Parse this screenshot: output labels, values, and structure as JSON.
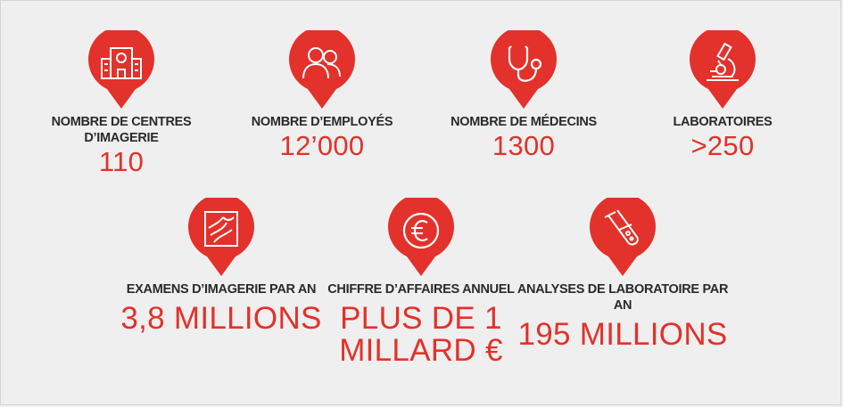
{
  "stats_row1": [
    {
      "icon": "building-icon",
      "label": "NOMBRE DE CENTRES D’IMAGERIE",
      "value": "110"
    },
    {
      "icon": "people-icon",
      "label": "NOMBRE D’EMPLOYÉS",
      "value": "12’000"
    },
    {
      "icon": "stethoscope-icon",
      "label": "NOMBRE DE MÉDECINS",
      "value": "1300"
    },
    {
      "icon": "microscope-icon",
      "label": "LABORATOIRES",
      "value": ">250"
    }
  ],
  "stats_row2": [
    {
      "icon": "xray-icon",
      "label": "EXAMENS D’IMAGERIE PAR AN",
      "value": "3,8 MILLIONS"
    },
    {
      "icon": "euro-icon",
      "label": "CHIFFRE D’AFFAIRES ANNUEL",
      "value": "PLUS DE 1 MILLARD €"
    },
    {
      "icon": "test-tube-icon",
      "label": "ANALYSES DE LABORATOIRE PAR AN",
      "value": "195 MILLIONS"
    }
  ],
  "colors": {
    "accent": "#e3312b",
    "text": "#2a2a2a",
    "background": "#efefef"
  }
}
